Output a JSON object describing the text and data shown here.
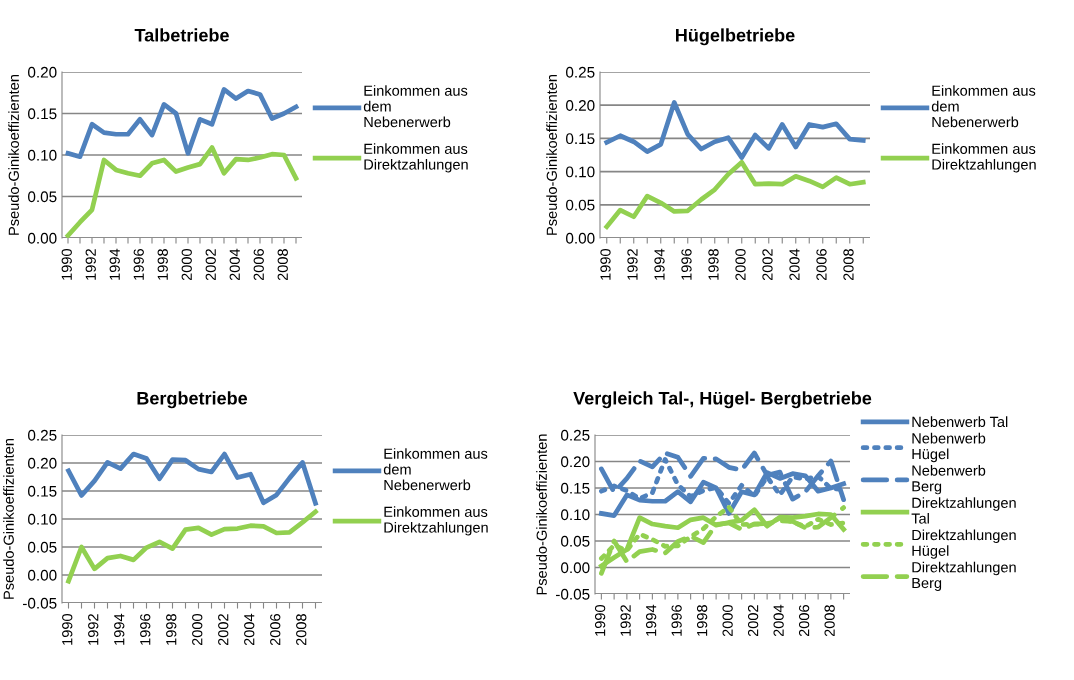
{
  "chart_data": [
    {
      "type": "line",
      "title": "Talbetriebe",
      "ylabel": "Pseudo-Ginikoeffizienten",
      "categories": [
        "1990",
        null,
        "1992",
        null,
        "1994",
        null,
        "1996",
        null,
        "1998",
        null,
        "2000",
        null,
        "2002",
        null,
        "2004",
        null,
        "2006",
        null,
        "2008",
        null
      ],
      "series": [
        {
          "name": "Einkommen aus\ndem\nNebenerwerb",
          "color": "#4f81bd",
          "line_style": "solid",
          "values": [
            0.102,
            0.098,
            0.137,
            0.127,
            0.125,
            0.125,
            0.143,
            0.124,
            0.161,
            0.15,
            0.102,
            0.143,
            0.137,
            0.179,
            0.168,
            0.177,
            0.173,
            0.144,
            0.15,
            0.158
          ]
        },
        {
          "name": "Einkommen aus\nDirektzahlungen",
          "color": "#92d050",
          "line_style": "solid",
          "values": [
            0.003,
            0.019,
            0.034,
            0.094,
            0.082,
            0.078,
            0.075,
            0.09,
            0.094,
            0.08,
            0.085,
            0.089,
            0.109,
            0.078,
            0.095,
            0.094,
            0.097,
            0.101,
            0.1,
            0.072
          ]
        }
      ],
      "ylim": [
        0,
        0.2
      ],
      "yticks": [
        {
          "value": 0,
          "label": "0.00"
        },
        {
          "value": 0.05,
          "label": "0.05"
        },
        {
          "value": 0.1,
          "label": "0.10"
        },
        {
          "value": 0.15,
          "label": "0.15"
        },
        {
          "value": 0.2,
          "label": "0.20"
        }
      ],
      "grid": "y",
      "legend": "right"
    },
    {
      "type": "line",
      "title": "Hügelbetriebe",
      "ylabel": "Pseudo-Ginikoeffizienten",
      "categories": [
        "1990",
        null,
        "1992",
        null,
        "1994",
        null,
        "1996",
        null,
        "1998",
        null,
        "2000",
        null,
        "2002",
        null,
        "2004",
        null,
        "2006",
        null,
        "2008",
        null
      ],
      "series": [
        {
          "name": "Einkommen aus\ndem\nNebenerwerb",
          "color": "#4f81bd",
          "line_style": "solid",
          "values": [
            0.144,
            0.154,
            0.145,
            0.13,
            0.141,
            0.204,
            0.156,
            0.134,
            0.145,
            0.151,
            0.121,
            0.155,
            0.135,
            0.171,
            0.137,
            0.171,
            0.167,
            0.172,
            0.149,
            0.147
          ]
        },
        {
          "name": "Einkommen aus\nDirektzahlungen",
          "color": "#92d050",
          "line_style": "solid",
          "values": [
            0.017,
            0.042,
            0.032,
            0.063,
            0.053,
            0.04,
            0.041,
            0.058,
            0.073,
            0.096,
            0.114,
            0.081,
            0.082,
            0.081,
            0.093,
            0.086,
            0.077,
            0.091,
            0.081,
            0.084
          ]
        }
      ],
      "ylim": [
        0,
        0.25
      ],
      "yticks": [
        {
          "value": 0,
          "label": "0.00"
        },
        {
          "value": 0.05,
          "label": "0.05"
        },
        {
          "value": 0.1,
          "label": "0.10"
        },
        {
          "value": 0.15,
          "label": "0.15"
        },
        {
          "value": 0.2,
          "label": "0.20"
        },
        {
          "value": 0.25,
          "label": "0.25"
        }
      ],
      "grid": "y",
      "legend": "right"
    },
    {
      "type": "line",
      "title": "Bergbetriebe",
      "ylabel": "Pseudo-Ginikoeffizienten",
      "categories": [
        "1990",
        null,
        "1992",
        null,
        "1994",
        null,
        "1996",
        null,
        "1998",
        null,
        "2000",
        null,
        "2002",
        null,
        "2004",
        null,
        "2006",
        null,
        "2008",
        null
      ],
      "series": [
        {
          "name": "Einkommen aus\ndem\nNebenerwerb",
          "color": "#4f81bd",
          "line_style": "solid",
          "values": [
            0.186,
            0.142,
            0.168,
            0.201,
            0.19,
            0.216,
            0.208,
            0.172,
            0.206,
            0.205,
            0.189,
            0.184,
            0.216,
            0.174,
            0.18,
            0.129,
            0.143,
            0.173,
            0.201,
            0.128
          ]
        },
        {
          "name": "Einkommen aus\nDirektzahlungen",
          "color": "#92d050",
          "line_style": "solid",
          "values": [
            -0.011,
            0.05,
            0.011,
            0.03,
            0.034,
            0.027,
            0.049,
            0.059,
            0.047,
            0.081,
            0.084,
            0.072,
            0.082,
            0.083,
            0.088,
            0.087,
            0.075,
            0.076,
            0.094,
            0.113
          ]
        }
      ],
      "ylim": [
        -0.05,
        0.25
      ],
      "yticks": [
        {
          "value": -0.05,
          "label": "-0.05"
        },
        {
          "value": 0,
          "label": "0.00"
        },
        {
          "value": 0.05,
          "label": "0.05"
        },
        {
          "value": 0.1,
          "label": "0.10"
        },
        {
          "value": 0.15,
          "label": "0.15"
        },
        {
          "value": 0.2,
          "label": "0.20"
        },
        {
          "value": 0.25,
          "label": "0.25"
        }
      ],
      "grid": "y",
      "legend": "right"
    },
    {
      "type": "line",
      "title": "Vergleich Tal-, Hügel- Bergbetriebe",
      "ylabel": "Pseudo-Ginikoeffizienten",
      "categories": [
        "1990",
        null,
        "1992",
        null,
        "1994",
        null,
        "1996",
        null,
        "1998",
        null,
        "2000",
        null,
        "2002",
        null,
        "2004",
        null,
        "2006",
        null,
        "2008",
        null
      ],
      "series": [
        {
          "name": "Nebenwerb Tal",
          "color": "#4f81bd",
          "line_style": "solid",
          "values": [
            0.102,
            0.098,
            0.137,
            0.127,
            0.125,
            0.125,
            0.143,
            0.124,
            0.161,
            0.15,
            0.102,
            0.143,
            0.137,
            0.179,
            0.168,
            0.177,
            0.173,
            0.144,
            0.15,
            0.158
          ]
        },
        {
          "name": "Nebenwerb\nHügel",
          "color": "#4f81bd",
          "line_style": "dotted",
          "values": [
            0.144,
            0.154,
            0.145,
            0.13,
            0.141,
            0.204,
            0.156,
            0.134,
            0.145,
            0.151,
            0.121,
            0.155,
            0.135,
            0.171,
            0.137,
            0.171,
            0.167,
            0.172,
            0.149,
            0.147
          ]
        },
        {
          "name": "Nebenwerb\nBerg",
          "color": "#4f81bd",
          "line_style": "dashed",
          "values": [
            0.186,
            0.142,
            0.168,
            0.201,
            0.19,
            0.216,
            0.208,
            0.172,
            0.206,
            0.205,
            0.189,
            0.184,
            0.216,
            0.174,
            0.18,
            0.129,
            0.143,
            0.173,
            0.201,
            0.128
          ]
        },
        {
          "name": "Direktzahlungen\nTal",
          "color": "#92d050",
          "line_style": "solid",
          "values": [
            0.003,
            0.019,
            0.034,
            0.094,
            0.082,
            0.078,
            0.075,
            0.09,
            0.094,
            0.08,
            0.085,
            0.089,
            0.109,
            0.078,
            0.095,
            0.094,
            0.097,
            0.101,
            0.1,
            0.072
          ]
        },
        {
          "name": "Direktzahlungen\nHügel",
          "color": "#92d050",
          "line_style": "dotted",
          "values": [
            0.017,
            0.042,
            0.032,
            0.063,
            0.053,
            0.04,
            0.041,
            0.058,
            0.073,
            0.096,
            0.114,
            0.081,
            0.082,
            0.081,
            0.093,
            0.086,
            0.077,
            0.091,
            0.081,
            0.084
          ]
        },
        {
          "name": "Direktzahlungen\nBerg",
          "color": "#92d050",
          "line_style": "dashed",
          "values": [
            -0.011,
            0.05,
            0.011,
            0.03,
            0.034,
            0.027,
            0.049,
            0.059,
            0.047,
            0.081,
            0.084,
            0.072,
            0.082,
            0.083,
            0.088,
            0.087,
            0.075,
            0.076,
            0.094,
            0.113
          ]
        }
      ],
      "ylim": [
        -0.05,
        0.25
      ],
      "yticks": [
        {
          "value": -0.05,
          "label": "-0.05"
        },
        {
          "value": 0,
          "label": "0.00"
        },
        {
          "value": 0.05,
          "label": "0.05"
        },
        {
          "value": 0.1,
          "label": "0.10"
        },
        {
          "value": 0.15,
          "label": "0.15"
        },
        {
          "value": 0.2,
          "label": "0.20"
        },
        {
          "value": 0.25,
          "label": "0.25"
        }
      ],
      "grid": "y",
      "legend": "top right"
    }
  ]
}
